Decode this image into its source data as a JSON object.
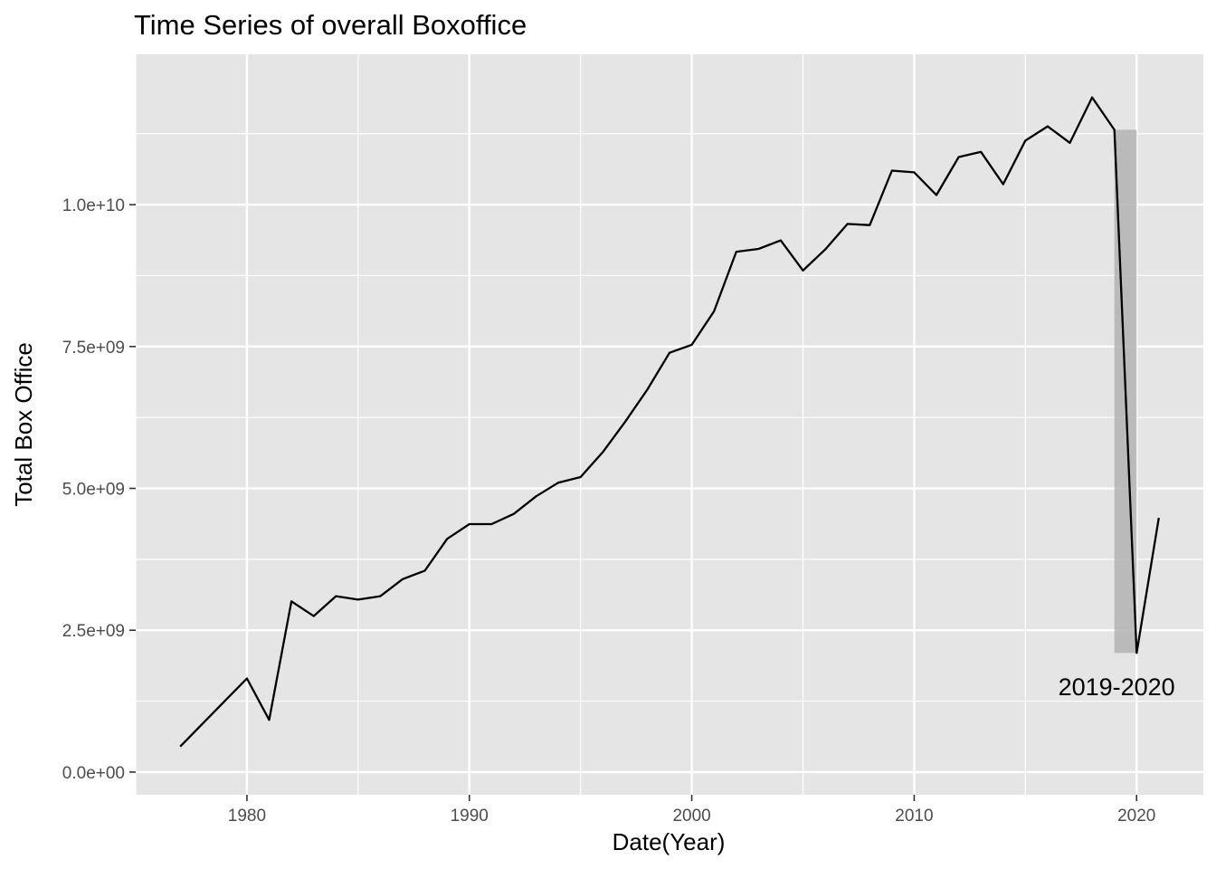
{
  "chart_data": {
    "type": "line",
    "title": "Time Series of overall Boxoffice",
    "xlabel": "Date(Year)",
    "ylabel": "Total Box Office",
    "xlim": [
      1975,
      2023
    ],
    "ylim": [
      0,
      12500000000
    ],
    "x_ticks": [
      1980,
      1990,
      2000,
      2010,
      2020
    ],
    "y_ticks": [
      {
        "value": 0,
        "label": "0.0e+00"
      },
      {
        "value": 2500000000,
        "label": "2.5e+09"
      },
      {
        "value": 5000000000,
        "label": "5.0e+09"
      },
      {
        "value": 7500000000,
        "label": "7.5e+09"
      },
      {
        "value": 10000000000,
        "label": "1.0e+10"
      }
    ],
    "grid": true,
    "series": [
      {
        "x": [
          1977,
          1978,
          1979,
          1980,
          1981,
          1982,
          1983,
          1984,
          1985,
          1986,
          1987,
          1988,
          1989,
          1990,
          1991,
          1992,
          1993,
          1994,
          1995,
          1996,
          1997,
          1998,
          1999,
          2000,
          2001,
          2002,
          2003,
          2004,
          2005,
          2006,
          2007,
          2008,
          2009,
          2010,
          2011,
          2012,
          2013,
          2014,
          2015,
          2016,
          2017,
          2018,
          2019,
          2020,
          2021
        ],
        "y": [
          450000000,
          850000000,
          1250000000,
          1650000000,
          920000000,
          3010000000,
          2750000000,
          3100000000,
          3040000000,
          3100000000,
          3400000000,
          3550000000,
          4110000000,
          4370000000,
          4370000000,
          4550000000,
          4860000000,
          5100000000,
          5200000000,
          5640000000,
          6170000000,
          6740000000,
          7390000000,
          7530000000,
          8120000000,
          9170000000,
          9220000000,
          9370000000,
          8840000000,
          9210000000,
          9660000000,
          9640000000,
          10600000000,
          10570000000,
          10170000000,
          10840000000,
          10930000000,
          10360000000,
          11130000000,
          11380000000,
          11090000000,
          11890000000,
          11320000000,
          2100000000,
          4480000000
        ],
        "color": "#000000"
      }
    ],
    "highlight": {
      "x_start": 2019,
      "x_end": 2020,
      "y_min": 2100000000,
      "y_max": 11320000000,
      "color": "#b3b3b3"
    },
    "annotation": {
      "text": "2019-2020",
      "x": 2019.1,
      "y": 1500000000
    },
    "panel_background": "#e5e5e5",
    "grid_color": "#ffffff"
  }
}
